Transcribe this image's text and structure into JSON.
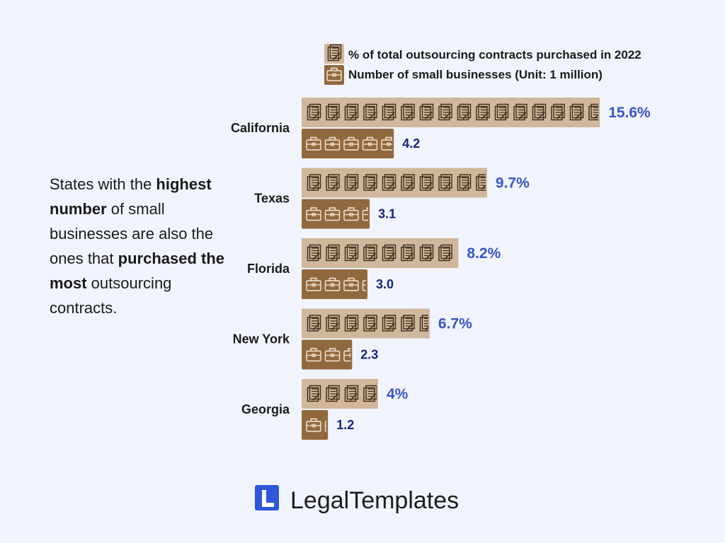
{
  "colors": {
    "pct_bar": "#d1b79c",
    "biz_bar": "#91693e",
    "pct_icon_stroke": "#3b2a18",
    "biz_icon_stroke": "#f3e7d6",
    "pct_value": "#3a55c9",
    "biz_value": "#16237a",
    "brand": "#2f57d9"
  },
  "legend": {
    "pct_label": "% of total outsourcing contracts purchased in 2022",
    "biz_label": "Number of small businesses (Unit: 1 million)",
    "pct_icon": "contract-document-icon",
    "biz_icon": "briefcase-icon"
  },
  "narrative": {
    "part1": "States with the ",
    "bold1": "highest number",
    "part2": " of small businesses are also the ones that ",
    "bold2": "purchased the most",
    "part3": " outsourcing contracts."
  },
  "chart_data": {
    "type": "bar",
    "orientation": "horizontal",
    "categories": [
      "California",
      "Texas",
      "Florida",
      "New York",
      "Georgia"
    ],
    "series": [
      {
        "name": "% of total outsourcing contracts purchased in 2022",
        "values": [
          15.6,
          9.7,
          8.2,
          6.7,
          4
        ],
        "labels": [
          "15.6%",
          "9.7%",
          "8.2%",
          "6.7%",
          "4%"
        ]
      },
      {
        "name": "Number of small businesses (Unit: 1 million)",
        "values": [
          4.2,
          3.1,
          3.0,
          2.3,
          1.2
        ],
        "labels": [
          "4.2",
          "3.1",
          "3.0",
          "2.3",
          "1.2"
        ]
      }
    ],
    "legend_position": "top",
    "grid": false
  },
  "brand": {
    "name": "LegalTemplates",
    "icon": "legaltemplates-logo-icon"
  }
}
